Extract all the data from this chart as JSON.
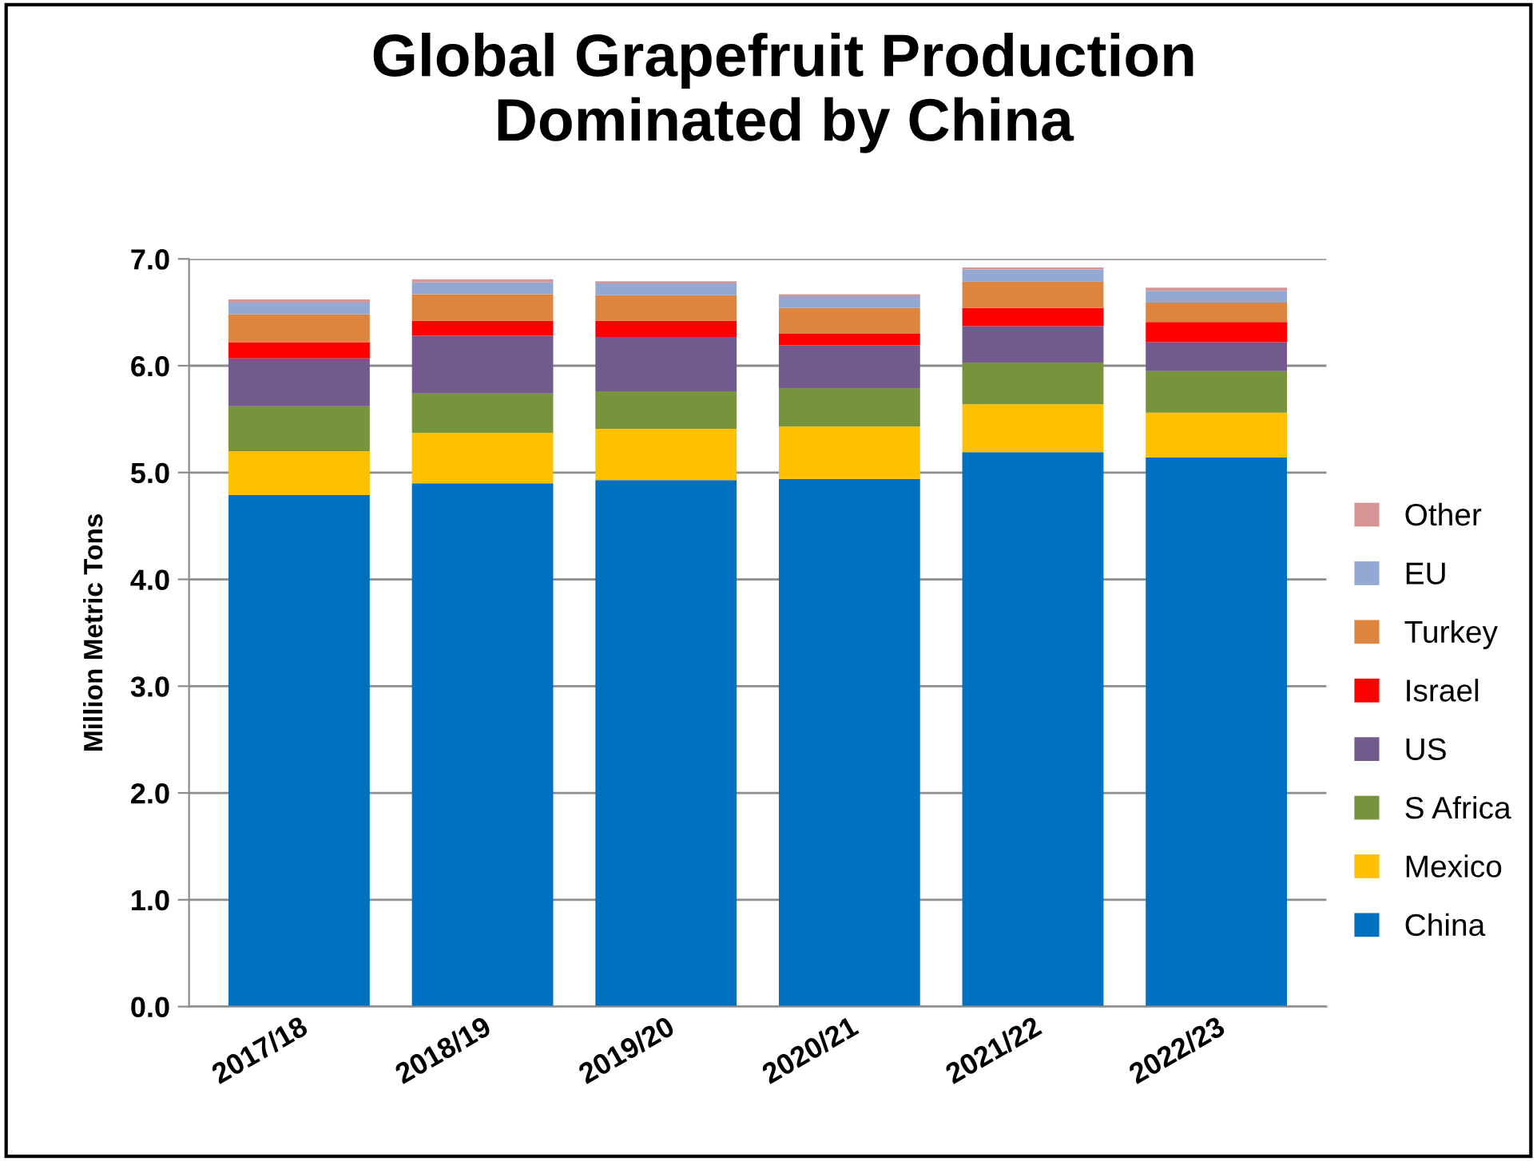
{
  "chart_data": {
    "type": "bar",
    "stacked": true,
    "title": "Global Grapefruit Production\nDominated by China",
    "ylabel": "Million Metric Tons",
    "categories": [
      "2017/18",
      "2018/19",
      "2019/20",
      "2020/21",
      "2021/22",
      "2022/23"
    ],
    "series": [
      {
        "name": "China",
        "color": "#0070c0",
        "values": [
          4.79,
          4.9,
          4.93,
          4.94,
          5.19,
          5.14
        ]
      },
      {
        "name": "Mexico",
        "color": "#ffc000",
        "values": [
          0.41,
          0.47,
          0.48,
          0.49,
          0.45,
          0.42
        ]
      },
      {
        "name": "S Africa",
        "color": "#77933c",
        "values": [
          0.42,
          0.37,
          0.35,
          0.36,
          0.39,
          0.39
        ]
      },
      {
        "name": "US",
        "color": "#72598e",
        "values": [
          0.45,
          0.54,
          0.51,
          0.4,
          0.34,
          0.27
        ]
      },
      {
        "name": "Israel",
        "color": "#ff0000",
        "values": [
          0.15,
          0.14,
          0.15,
          0.11,
          0.17,
          0.19
        ]
      },
      {
        "name": "Turkey",
        "color": "#dd843e",
        "values": [
          0.26,
          0.25,
          0.24,
          0.24,
          0.25,
          0.18
        ]
      },
      {
        "name": "EU",
        "color": "#93a9d2",
        "values": [
          0.11,
          0.11,
          0.11,
          0.11,
          0.11,
          0.11
        ]
      },
      {
        "name": "Other",
        "color": "#d69595",
        "values": [
          0.03,
          0.03,
          0.02,
          0.02,
          0.02,
          0.03
        ]
      }
    ],
    "ylim": [
      0,
      7
    ],
    "yticks": [
      {
        "value": 0,
        "label": "0.0"
      },
      {
        "value": 1,
        "label": "1.0"
      },
      {
        "value": 2,
        "label": "2.0"
      },
      {
        "value": 3,
        "label": "3.0"
      },
      {
        "value": 4,
        "label": "4.0"
      },
      {
        "value": 5,
        "label": "5.0"
      },
      {
        "value": 6,
        "label": "6.0"
      },
      {
        "value": 7,
        "label": "7.0"
      }
    ],
    "grid": "y",
    "legend": "right"
  }
}
